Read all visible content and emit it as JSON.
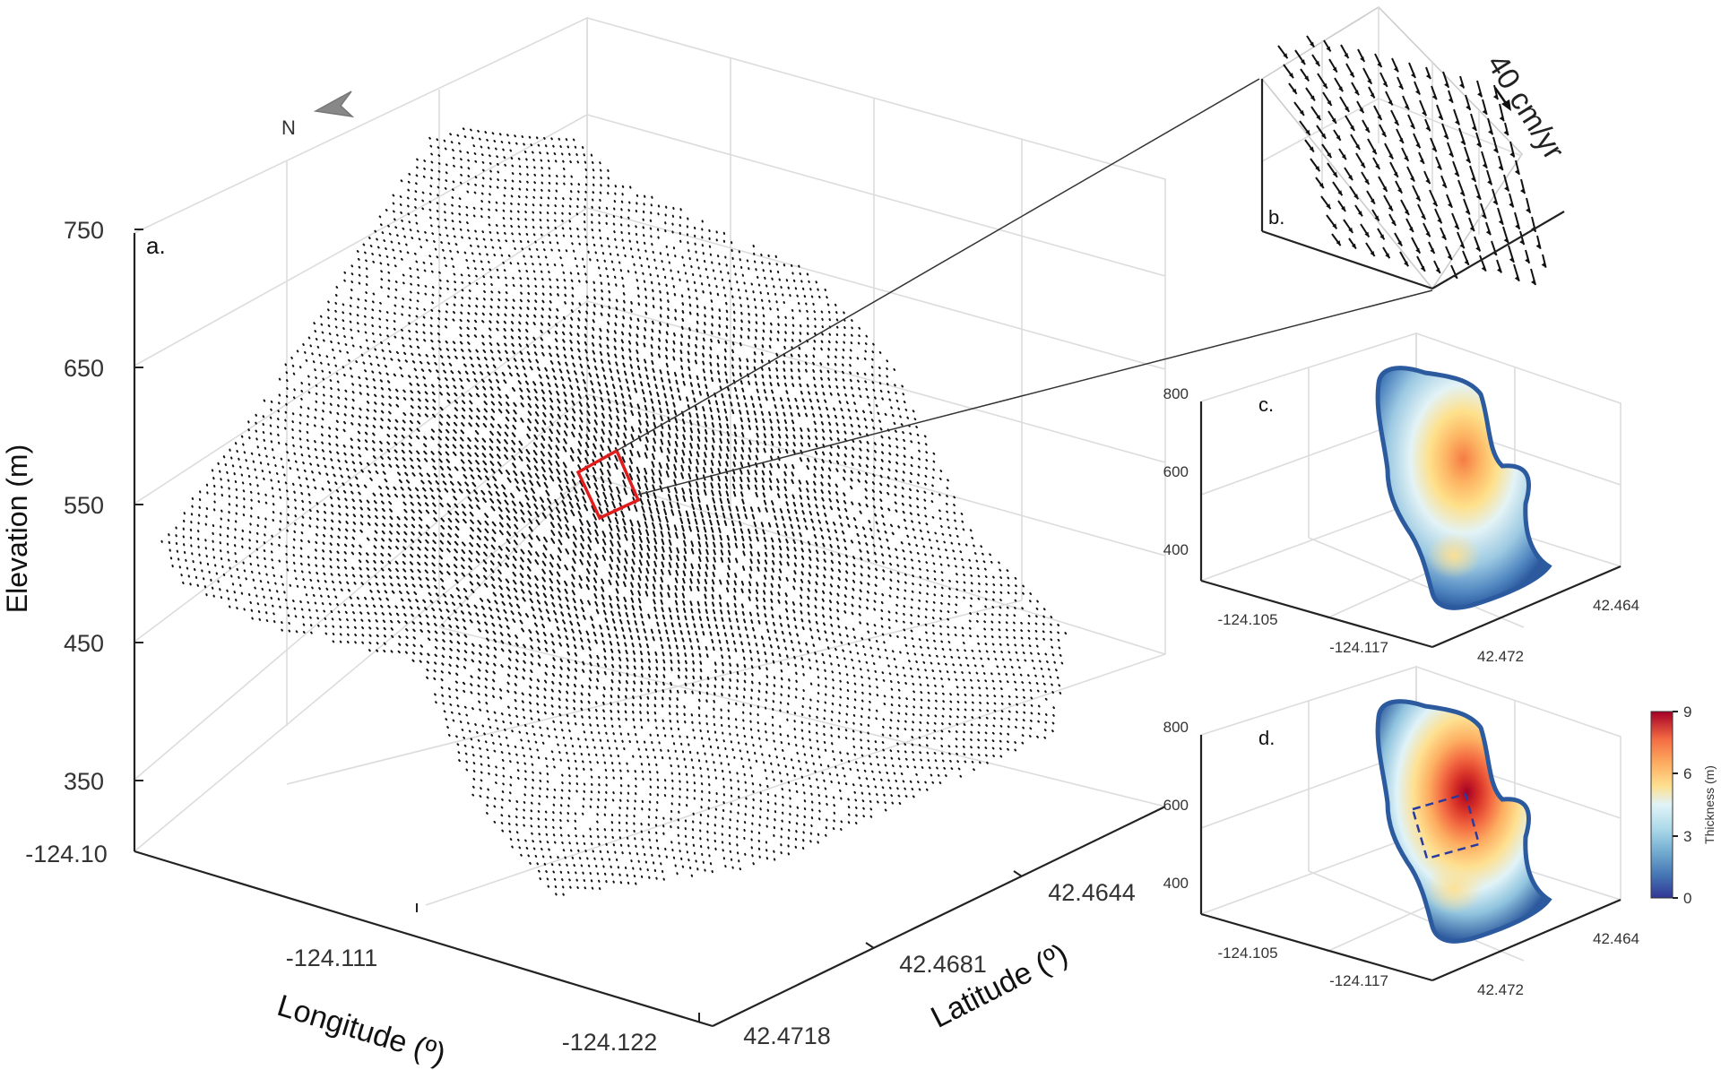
{
  "figure": {
    "north_label": "N",
    "panel_labels": {
      "a": "a.",
      "b": "b.",
      "c": "c.",
      "d": "d."
    },
    "scale_label": "40 cm/yr"
  },
  "chart_data": [
    {
      "id": "a",
      "type": "scatter",
      "projection": "3d",
      "description_text": "",
      "title": "",
      "zlabel": "Elevation (m)",
      "xlabel": "Longitude (º)",
      "ylabel": "Latitude (º)",
      "z_ticks": [
        "350",
        "450",
        "550",
        "650",
        "750"
      ],
      "z_range": [
        330,
        770
      ],
      "x_ticks": [
        "-124.10",
        "-124.111",
        "-124.122"
      ],
      "x_range": [
        -124.1,
        -124.122
      ],
      "y_ticks": [
        "42.4718",
        "42.4681",
        "42.4644"
      ],
      "y_range": [
        42.4718,
        42.4644
      ],
      "grid": true,
      "marker_color": "#111111",
      "highlight_box_color": "#e01c1c"
    },
    {
      "id": "b",
      "type": "scatter",
      "projection": "3d",
      "description": "velocity vectors, zoom of highlighted region",
      "vector_scale": "40 cm/yr",
      "arrow_color": "#111111"
    },
    {
      "id": "c",
      "type": "heatmap",
      "projection": "3d",
      "z_ticks": [
        "400",
        "600",
        "800"
      ],
      "x_ticks": [
        "-124.105",
        "-124.117"
      ],
      "y_ticks": [
        "42.464",
        "42.472"
      ],
      "peak_thickness_m": 5.5
    },
    {
      "id": "d",
      "type": "heatmap",
      "projection": "3d",
      "z_ticks": [
        "400",
        "600",
        "800"
      ],
      "x_ticks": [
        "-124.105",
        "-124.117"
      ],
      "y_ticks": [
        "42.464",
        "42.472"
      ],
      "peak_thickness_m": 9,
      "colorbar": {
        "label": "Thickness (m)",
        "ticks": [
          "0",
          "3",
          "6",
          "9"
        ],
        "range": [
          0,
          9
        ]
      },
      "dashed_box_color": "#2a3a9e"
    }
  ]
}
